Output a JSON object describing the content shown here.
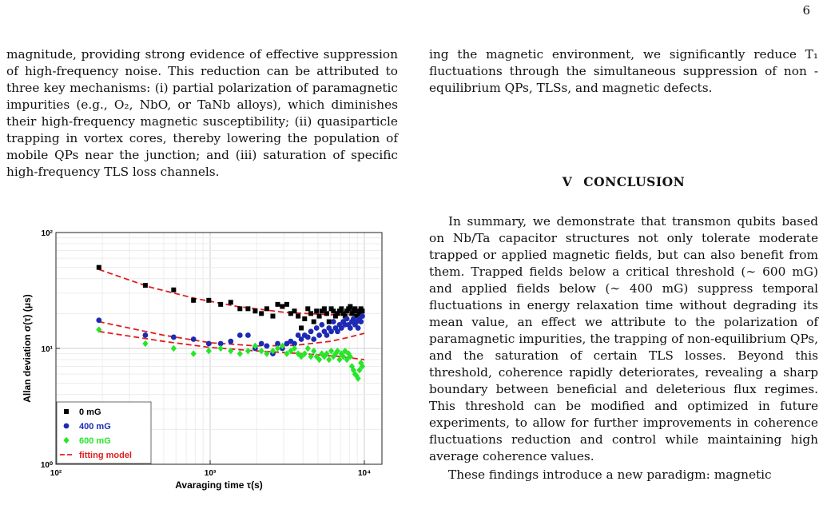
{
  "page_number": "6",
  "left_column": {
    "paragraph": "magnitude, providing strong evidence of effective suppression of high-frequency noise. This reduction can be attributed to three key mechanisms: (i) partial polarization of paramagnetic impurities (e.g., O₂, NbO, or TaNb alloys), which diminishes their high-frequency magnetic susceptibility; (ii) quasiparticle trapping in vortex cores, thereby lowering the population of mobile QPs near the junction; and (iii) saturation of specific high-frequency TLS loss channels."
  },
  "right_column": {
    "paragraph_top": "ing the magnetic environment, we significantly reduce T₁ fluctuations through the simultaneous suppression of non -equilibrium QPs, TLSs, and magnetic defects.",
    "section_number": "V",
    "section_title": "CONCLUSION",
    "paragraph_conclusion": "In summary, we demonstrate that transmon qubits based on Nb/Ta capacitor structures not only tolerate moderate trapped or applied magnetic fields, but can also benefit from them. Trapped fields below a critical threshold (∼ 600 mG) and applied fields below (∼ 400 mG) suppress temporal fluctuations in energy relaxation time without degrading its mean value, an effect we attribute to the polarization of paramagnetic impurities, the trapping of non-equilibrium QPs, and the saturation of certain TLS losses. Beyond this threshold, coherence rapidly deteriorates, revealing a sharp boundary between beneficial and deleterious flux regimes. This threshold can be modified and optimized in future experiments, to allow for further improvements in coherence fluctuations reduction and control while maintaining high average coherence values.",
    "paragraph_last": "These findings introduce a new paradigm: magnetic"
  },
  "chart_data": {
    "type": "scatter",
    "title": "",
    "xlabel": "Avaraging time τ(s)",
    "ylabel": "Allan deviation σ(τ) (μs)",
    "x_scale": "log",
    "y_scale": "log",
    "xlim": [
      100,
      13000
    ],
    "ylim": [
      1,
      100
    ],
    "x_ticks": [
      {
        "value": 100,
        "label": "10²"
      },
      {
        "value": 1000,
        "label": "10³"
      },
      {
        "value": 10000,
        "label": "10⁴"
      }
    ],
    "y_ticks": [
      {
        "value": 1,
        "label": "10⁰"
      },
      {
        "value": 10,
        "label": "10¹"
      },
      {
        "value": 100,
        "label": "10²"
      }
    ],
    "grid": true,
    "legend_position": "bottom-left",
    "series": [
      {
        "name": "0 mG",
        "marker": "square",
        "color": "#000000",
        "points": [
          [
            190,
            50
          ],
          [
            380,
            35
          ],
          [
            580,
            32
          ],
          [
            780,
            26
          ],
          [
            980,
            26
          ],
          [
            1170,
            24
          ],
          [
            1360,
            25
          ],
          [
            1560,
            22
          ],
          [
            1760,
            22
          ],
          [
            1960,
            21
          ],
          [
            2150,
            20
          ],
          [
            2330,
            22
          ],
          [
            2550,
            19
          ],
          [
            2740,
            24
          ],
          [
            2940,
            23
          ],
          [
            3140,
            24
          ],
          [
            3330,
            20
          ],
          [
            3520,
            21
          ],
          [
            3720,
            19
          ],
          [
            3900,
            15
          ],
          [
            4100,
            18
          ],
          [
            4300,
            22
          ],
          [
            4500,
            20
          ],
          [
            4700,
            17
          ],
          [
            4900,
            21
          ],
          [
            5100,
            19
          ],
          [
            5300,
            21
          ],
          [
            5500,
            22
          ],
          [
            5700,
            20
          ],
          [
            5900,
            17
          ],
          [
            6100,
            22
          ],
          [
            6300,
            21
          ],
          [
            6500,
            19
          ],
          [
            6700,
            20
          ],
          [
            6900,
            21
          ],
          [
            7100,
            22
          ],
          [
            7300,
            20
          ],
          [
            7500,
            19
          ],
          [
            7700,
            21
          ],
          [
            7900,
            22
          ],
          [
            8100,
            23
          ],
          [
            8300,
            20
          ],
          [
            8500,
            21
          ],
          [
            8700,
            22
          ],
          [
            8900,
            19
          ],
          [
            9100,
            21
          ],
          [
            9300,
            20
          ],
          [
            9500,
            22
          ],
          [
            9700,
            21
          ]
        ]
      },
      {
        "name": "400 mG",
        "marker": "circle",
        "color": "#1e2ab4",
        "points": [
          [
            190,
            17.5
          ],
          [
            380,
            13
          ],
          [
            580,
            12.5
          ],
          [
            780,
            12
          ],
          [
            980,
            11
          ],
          [
            1170,
            11
          ],
          [
            1360,
            11.5
          ],
          [
            1560,
            13
          ],
          [
            1760,
            13
          ],
          [
            1960,
            10
          ],
          [
            2150,
            11
          ],
          [
            2330,
            10.5
          ],
          [
            2550,
            9
          ],
          [
            2740,
            11
          ],
          [
            2940,
            10
          ],
          [
            3140,
            11
          ],
          [
            3330,
            11.5
          ],
          [
            3520,
            11
          ],
          [
            3720,
            13
          ],
          [
            3900,
            12
          ],
          [
            4100,
            13
          ],
          [
            4300,
            12.5
          ],
          [
            4500,
            14
          ],
          [
            4700,
            12
          ],
          [
            4900,
            15
          ],
          [
            5100,
            13
          ],
          [
            5300,
            16
          ],
          [
            5500,
            14
          ],
          [
            5700,
            13
          ],
          [
            5900,
            15
          ],
          [
            6100,
            14
          ],
          [
            6300,
            17
          ],
          [
            6500,
            15
          ],
          [
            6700,
            14
          ],
          [
            6900,
            16
          ],
          [
            7100,
            15
          ],
          [
            7300,
            17
          ],
          [
            7500,
            16
          ],
          [
            7700,
            18
          ],
          [
            7900,
            16
          ],
          [
            8100,
            15
          ],
          [
            8300,
            17
          ],
          [
            8500,
            18
          ],
          [
            8700,
            16
          ],
          [
            8900,
            17
          ],
          [
            9100,
            15
          ],
          [
            9300,
            18
          ],
          [
            9500,
            17
          ],
          [
            9700,
            19
          ]
        ]
      },
      {
        "name": "600 mG",
        "marker": "diamond",
        "color": "#27e62a",
        "points": [
          [
            190,
            14.5
          ],
          [
            380,
            11
          ],
          [
            580,
            10
          ],
          [
            780,
            9
          ],
          [
            980,
            9.5
          ],
          [
            1170,
            10
          ],
          [
            1360,
            9.5
          ],
          [
            1560,
            9
          ],
          [
            1760,
            9.5
          ],
          [
            1960,
            10.5
          ],
          [
            2150,
            9.5
          ],
          [
            2330,
            9
          ],
          [
            2550,
            9.5
          ],
          [
            2740,
            10
          ],
          [
            2940,
            10.5
          ],
          [
            3140,
            9
          ],
          [
            3330,
            9.5
          ],
          [
            3520,
            10
          ],
          [
            3720,
            9
          ],
          [
            3900,
            8.5
          ],
          [
            4100,
            9
          ],
          [
            4300,
            10
          ],
          [
            4500,
            8.5
          ],
          [
            4700,
            9.5
          ],
          [
            4900,
            8.5
          ],
          [
            5100,
            8
          ],
          [
            5300,
            9
          ],
          [
            5500,
            8.5
          ],
          [
            5700,
            9
          ],
          [
            5900,
            8
          ],
          [
            6100,
            9.5
          ],
          [
            6300,
            8.5
          ],
          [
            6500,
            9
          ],
          [
            6700,
            9.5
          ],
          [
            6900,
            8
          ],
          [
            7100,
            9
          ],
          [
            7300,
            8.5
          ],
          [
            7500,
            9.5
          ],
          [
            7700,
            8
          ],
          [
            7900,
            9
          ],
          [
            8100,
            8.5
          ],
          [
            8300,
            7
          ],
          [
            8500,
            6.5
          ],
          [
            8700,
            6
          ],
          [
            8900,
            5.8
          ],
          [
            9100,
            5.5
          ],
          [
            9300,
            6.5
          ],
          [
            9500,
            7.5
          ],
          [
            9700,
            7
          ]
        ]
      },
      {
        "name": "fitting model",
        "line": "dashed",
        "color": "#e01e1e",
        "fits": [
          [
            [
              190,
              48
            ],
            [
              400,
              34
            ],
            [
              800,
              27
            ],
            [
              1500,
              23
            ],
            [
              3000,
              20.5
            ],
            [
              6000,
              19.5
            ],
            [
              10000,
              19.5
            ]
          ],
          [
            [
              190,
              17
            ],
            [
              500,
              13
            ],
            [
              1000,
              11.2
            ],
            [
              2000,
              10.5
            ],
            [
              3500,
              10.6
            ],
            [
              6000,
              11.5
            ],
            [
              8000,
              12.5
            ],
            [
              10000,
              13.5
            ]
          ],
          [
            [
              190,
              14
            ],
            [
              500,
              11.5
            ],
            [
              1000,
              10.2
            ],
            [
              2000,
              9.5
            ],
            [
              4000,
              9
            ],
            [
              7000,
              8.5
            ],
            [
              10000,
              8
            ]
          ]
        ]
      }
    ]
  }
}
